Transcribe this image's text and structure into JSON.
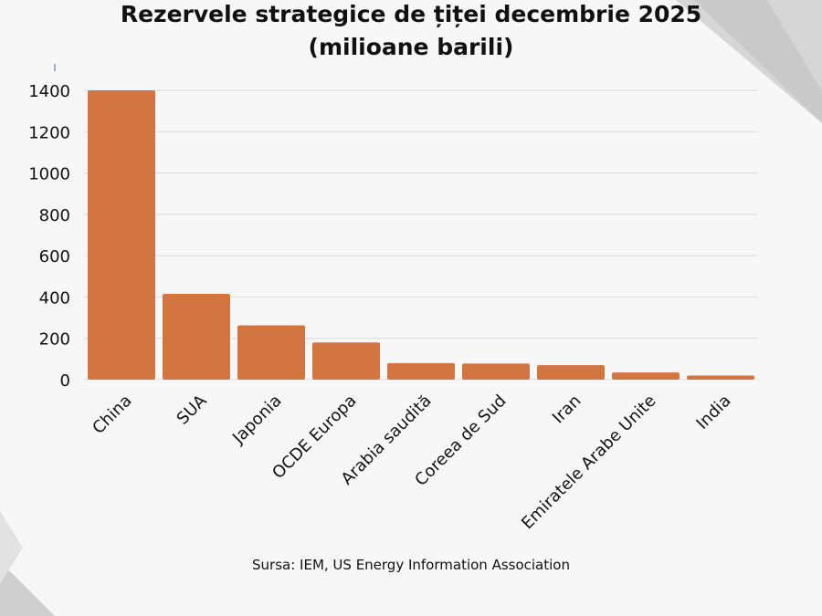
{
  "chart_data": {
    "type": "bar",
    "title": "Rezervele strategice de țiței decembrie 2025",
    "subtitle": "(milioane barili)",
    "categories": [
      "China",
      "SUA",
      "Japonia",
      "OCDE Europa",
      "Arabia saudită",
      "Coreea de Sud",
      "Iran",
      "Emiratele Arabe Unite",
      "India"
    ],
    "values": [
      1400,
      415,
      263,
      180,
      80,
      78,
      70,
      35,
      20
    ],
    "ylim": [
      0,
      1400
    ],
    "yticks": [
      0,
      200,
      400,
      600,
      800,
      1000,
      1200,
      1400
    ],
    "xlabel": "",
    "ylabel": "",
    "grid": true,
    "bar_color": "#D27540",
    "grid_color": "#d9d9d9",
    "text_color": "#111111"
  },
  "source": "Sursa: IEM, US Energy Information Association"
}
